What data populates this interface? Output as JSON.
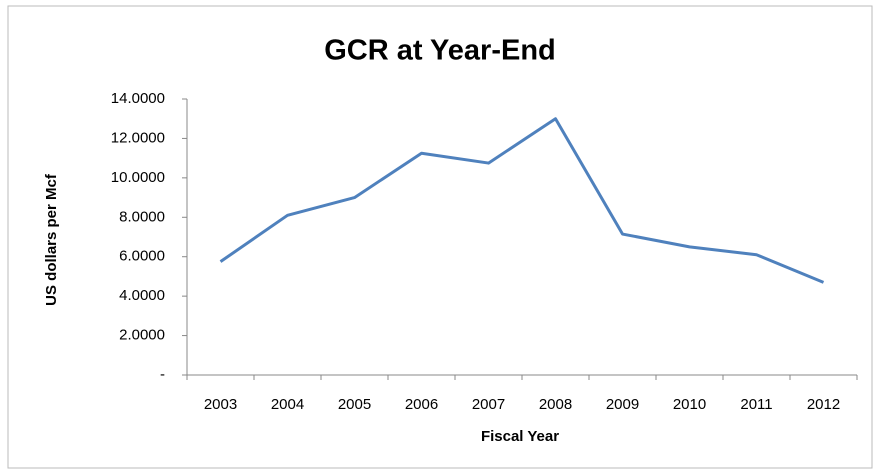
{
  "chart_data": {
    "type": "line",
    "title": "GCR at Year-End",
    "x_label": "Fiscal Year",
    "y_label": "US dollars per Mcf",
    "categories": [
      "2003",
      "2004",
      "2005",
      "2006",
      "2007",
      "2008",
      "2009",
      "2010",
      "2011",
      "2012"
    ],
    "series": [
      {
        "name": "GCR",
        "color": "#4f81bd",
        "values": [
          5.75,
          8.1,
          9.0,
          11.25,
          10.75,
          13.0,
          7.15,
          6.5,
          6.1,
          4.7
        ]
      }
    ],
    "ylim": [
      0,
      14
    ],
    "yticks": [
      {
        "value": 0,
        "label": "-"
      },
      {
        "value": 2,
        "label": "2.0000"
      },
      {
        "value": 4,
        "label": "4.0000"
      },
      {
        "value": 6,
        "label": "6.0000"
      },
      {
        "value": 8,
        "label": "8.0000"
      },
      {
        "value": 10,
        "label": "10.0000"
      },
      {
        "value": 12,
        "label": "12.0000"
      },
      {
        "value": 14,
        "label": "14.0000"
      }
    ],
    "grid": false
  }
}
